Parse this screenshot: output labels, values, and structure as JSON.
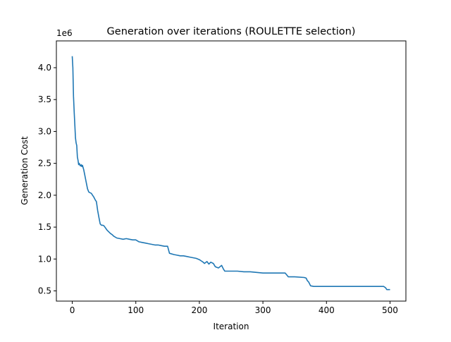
{
  "chart_data": {
    "type": "line",
    "title": "Generation over iterations (ROULETTE selection)",
    "xlabel": "Iteration",
    "ylabel": "Generation Cost",
    "y_multiplier_label": "1e6",
    "xlim": [
      -25,
      525
    ],
    "ylim": [
      0.34,
      4.42
    ],
    "x_ticks": [
      0,
      100,
      200,
      300,
      400,
      500
    ],
    "x_tick_labels": [
      "0",
      "100",
      "200",
      "300",
      "400",
      "500"
    ],
    "y_ticks": [
      0.5,
      1.0,
      1.5,
      2.0,
      2.5,
      3.0,
      3.5,
      4.0
    ],
    "y_tick_labels": [
      "0.5",
      "1.0",
      "1.5",
      "2.0",
      "2.5",
      "3.0",
      "3.5",
      "4.0"
    ],
    "grid": false,
    "line_color": "#1f77b4",
    "series": [
      {
        "x": [
          0,
          1,
          2,
          3,
          4,
          5,
          6,
          7,
          8,
          9,
          10,
          11,
          12,
          13,
          14,
          15,
          16,
          18,
          20,
          22,
          24,
          26,
          28,
          30,
          32,
          34,
          36,
          38,
          40,
          42,
          44,
          46,
          48,
          50,
          55,
          60,
          63,
          65,
          70,
          75,
          80,
          85,
          90,
          95,
          100,
          105,
          110,
          115,
          120,
          125,
          130,
          135,
          140,
          145,
          150,
          153,
          160,
          165,
          170,
          175,
          180,
          185,
          190,
          195,
          200,
          203,
          206,
          208,
          212,
          215,
          218,
          222,
          225,
          230,
          235,
          238,
          240,
          250,
          260,
          270,
          280,
          290,
          300,
          310,
          320,
          335,
          340,
          350,
          365,
          368,
          370,
          372,
          375,
          380,
          400,
          420,
          440,
          460,
          480,
          490,
          493,
          495,
          500
        ],
        "values": [
          4.18,
          4.0,
          3.55,
          3.3,
          3.1,
          2.9,
          2.82,
          2.78,
          2.6,
          2.55,
          2.48,
          2.5,
          2.47,
          2.46,
          2.48,
          2.45,
          2.47,
          2.4,
          2.3,
          2.2,
          2.1,
          2.05,
          2.04,
          2.03,
          2.0,
          1.97,
          1.93,
          1.9,
          1.76,
          1.65,
          1.55,
          1.53,
          1.53,
          1.52,
          1.45,
          1.4,
          1.38,
          1.36,
          1.33,
          1.32,
          1.31,
          1.32,
          1.31,
          1.3,
          1.3,
          1.27,
          1.26,
          1.25,
          1.24,
          1.23,
          1.22,
          1.22,
          1.21,
          1.2,
          1.2,
          1.09,
          1.07,
          1.06,
          1.05,
          1.05,
          1.04,
          1.03,
          1.02,
          1.01,
          0.99,
          0.97,
          0.95,
          0.93,
          0.96,
          0.92,
          0.95,
          0.93,
          0.88,
          0.86,
          0.9,
          0.84,
          0.81,
          0.81,
          0.81,
          0.8,
          0.8,
          0.79,
          0.78,
          0.78,
          0.78,
          0.78,
          0.72,
          0.72,
          0.71,
          0.7,
          0.66,
          0.64,
          0.58,
          0.57,
          0.57,
          0.57,
          0.57,
          0.57,
          0.57,
          0.57,
          0.55,
          0.52,
          0.52
        ]
      }
    ]
  }
}
